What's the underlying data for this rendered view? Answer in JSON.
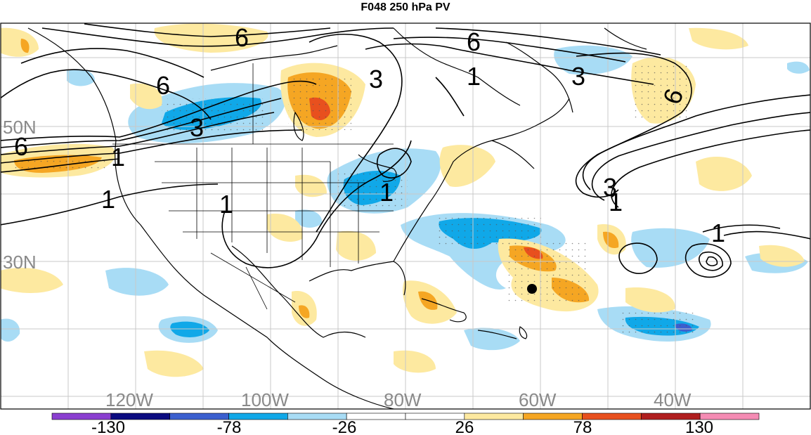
{
  "title": "F048 250 hPa PV",
  "lat_labels": [
    "50N",
    "30N"
  ],
  "lon_labels": [
    "120W",
    "100W",
    "80W",
    "60W",
    "40W"
  ],
  "contour_labels": [
    "6",
    "6",
    "6",
    "6",
    "3",
    "3",
    "3",
    "3",
    "1",
    "1",
    "1",
    "1",
    "1",
    "1",
    "1",
    "6"
  ],
  "colorbar": {
    "tick_labels": [
      "-130",
      "-78",
      "-26",
      "26",
      "78",
      "130"
    ],
    "colors": [
      "#8a3fd0",
      "#0b0b80",
      "#3b5fcf",
      "#10a8e8",
      "#a8dcf5",
      "#ffffff",
      "#ffffff",
      "#fde9a0",
      "#f5a623",
      "#e8501e",
      "#b01e1e",
      "#f58cb4"
    ]
  },
  "colors": {
    "positive_light": "#fde9a0",
    "positive_mid": "#f5a623",
    "positive_strong": "#e8501e",
    "negative_light": "#a8dcf5",
    "negative_mid": "#10a8e8",
    "negative_strong": "#3b5fcf",
    "graticule": "#c8c8c8"
  }
}
